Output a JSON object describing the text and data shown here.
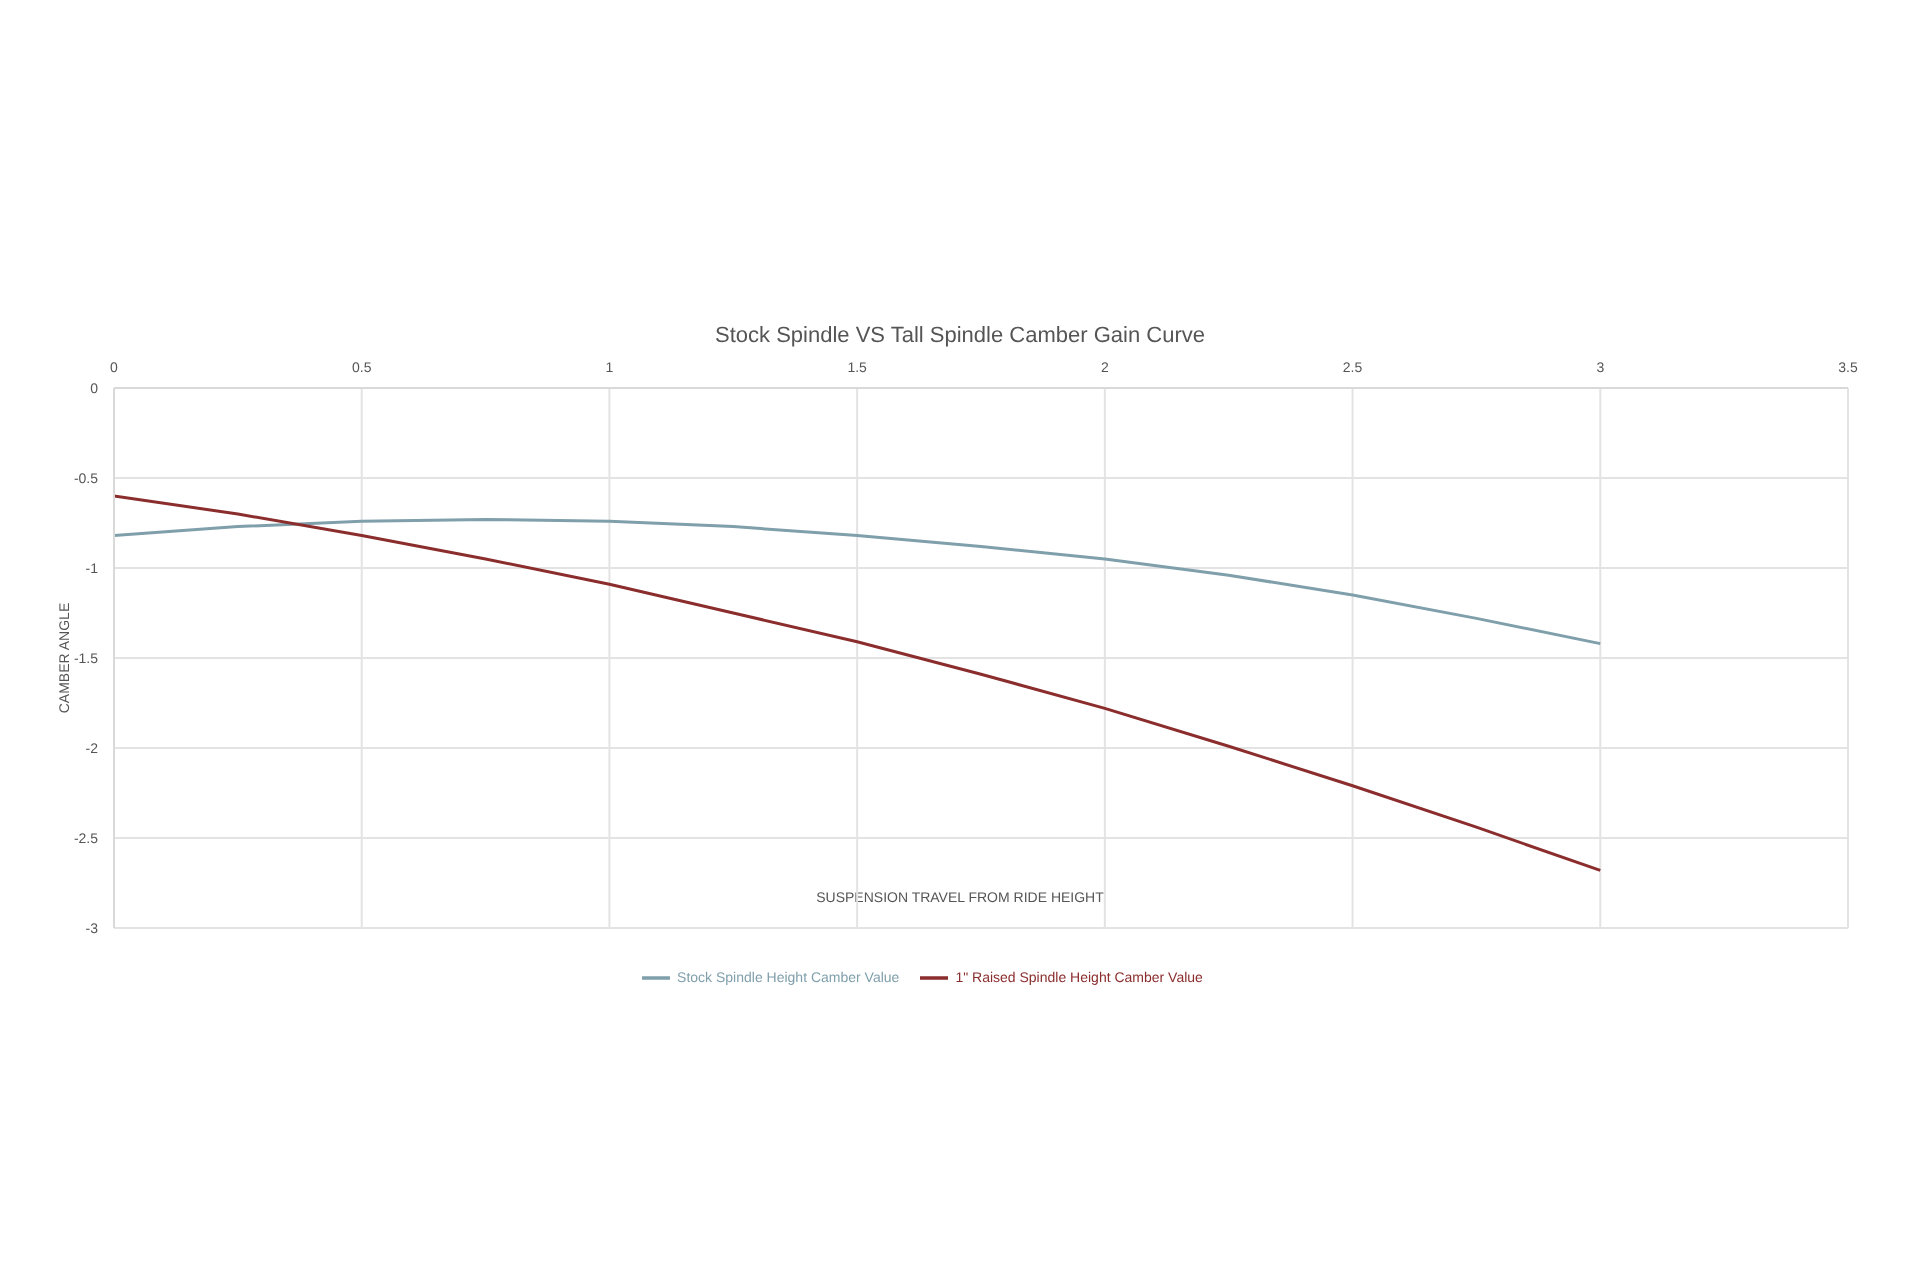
{
  "chart_data": {
    "type": "line",
    "title": "Stock Spindle VS Tall Spindle Camber Gain Curve",
    "xlabel": "SUSPENSION TRAVEL FROM RIDE HEIGHT",
    "ylabel": "CAMBER ANGLE",
    "x": [
      0,
      0.25,
      0.5,
      0.75,
      1,
      1.25,
      1.5,
      1.75,
      2,
      2.25,
      2.5,
      2.75,
      3
    ],
    "series": [
      {
        "name": "Stock Spindle Height Camber Value",
        "color": "#7f9fab",
        "values": [
          -0.82,
          -0.77,
          -0.74,
          -0.73,
          -0.74,
          -0.77,
          -0.82,
          -0.88,
          -0.95,
          -1.04,
          -1.15,
          -1.28,
          -1.42
        ]
      },
      {
        "name": "1\" Raised Spindle Height Camber Value",
        "color": "#8b2d2d",
        "values": [
          -0.6,
          -0.7,
          -0.82,
          -0.95,
          -1.09,
          -1.25,
          -1.41,
          -1.59,
          -1.78,
          -1.99,
          -2.21,
          -2.44,
          -2.68
        ]
      }
    ],
    "xlim": [
      0,
      3.5
    ],
    "xticks": [
      0,
      0.5,
      1,
      1.5,
      2,
      2.5,
      3,
      3.5
    ],
    "ylim": [
      -3,
      0
    ],
    "yticks": [
      0,
      -0.5,
      -1,
      -1.5,
      -2,
      -2.5,
      -3
    ],
    "grid": true,
    "legend": "bottom",
    "marker": "none",
    "line_style": "solid"
  }
}
